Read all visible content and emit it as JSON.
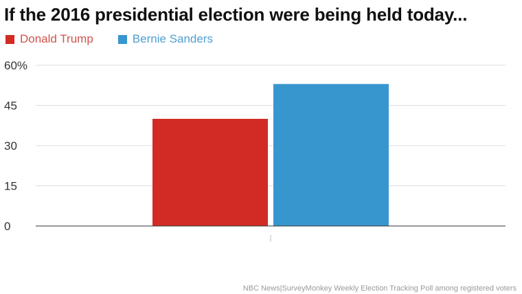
{
  "title": "If the 2016 presidential election were being held today...",
  "source": "NBC News|SurveyMonkey Weekly Election Tracking Poll among registered voters",
  "chart_data": {
    "type": "bar",
    "categories": [
      ""
    ],
    "series": [
      {
        "name": "Donald Trump",
        "color": "#d12b24",
        "values": [
          40
        ]
      },
      {
        "name": "Bernie Sanders",
        "color": "#3896cf",
        "values": [
          53
        ]
      }
    ],
    "ylim": [
      0,
      60
    ],
    "yticks": [
      0,
      15,
      30,
      45,
      60
    ],
    "ytick_labels": [
      "0",
      "15",
      "30",
      "45",
      "60%"
    ],
    "grid": true,
    "legend": "top-left"
  }
}
